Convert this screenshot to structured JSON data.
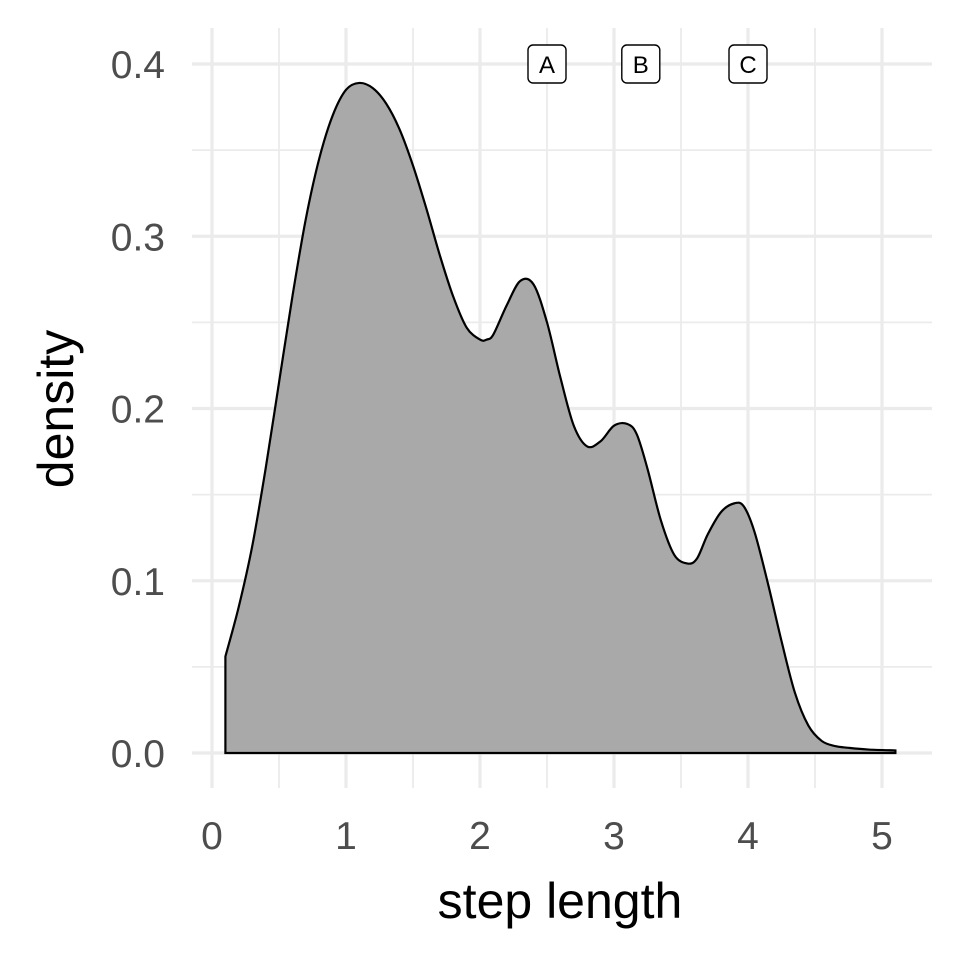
{
  "chart_data": {
    "type": "area",
    "title": "",
    "xlabel": "step length",
    "ylabel": "density",
    "xlim": [
      0,
      5
    ],
    "ylim": [
      0,
      0.4
    ],
    "x_ticks": [
      "0",
      "1",
      "2",
      "3",
      "4",
      "5"
    ],
    "y_ticks": [
      "0.0",
      "0.1",
      "0.2",
      "0.3",
      "0.4"
    ],
    "grid": true,
    "fill_color": "#a9a9a9",
    "line_color": "#000000",
    "series": [
      {
        "x": [
          0.1,
          0.2,
          0.3,
          0.4,
          0.5,
          0.6,
          0.7,
          0.8,
          0.9,
          1.0,
          1.1,
          1.2,
          1.3,
          1.4,
          1.5,
          1.6,
          1.7,
          1.8,
          1.9,
          2.0,
          2.05,
          2.1,
          2.2,
          2.3,
          2.4,
          2.5,
          2.6,
          2.7,
          2.8,
          2.9,
          3.0,
          3.1,
          3.17,
          3.25,
          3.35,
          3.45,
          3.55,
          3.62,
          3.7,
          3.8,
          3.9,
          3.97,
          4.05,
          4.15,
          4.25,
          4.35,
          4.45,
          4.55,
          4.65,
          4.75,
          4.9,
          5.1
        ],
        "y": [
          0.056,
          0.085,
          0.12,
          0.165,
          0.215,
          0.265,
          0.31,
          0.345,
          0.37,
          0.385,
          0.389,
          0.386,
          0.377,
          0.362,
          0.341,
          0.316,
          0.289,
          0.265,
          0.247,
          0.24,
          0.24,
          0.243,
          0.26,
          0.274,
          0.272,
          0.25,
          0.218,
          0.19,
          0.178,
          0.181,
          0.19,
          0.191,
          0.185,
          0.165,
          0.135,
          0.115,
          0.11,
          0.113,
          0.127,
          0.14,
          0.145,
          0.143,
          0.128,
          0.098,
          0.065,
          0.035,
          0.016,
          0.007,
          0.004,
          0.003,
          0.002,
          0.0015
        ]
      }
    ],
    "annotations": [
      {
        "label": "A",
        "x": 2.5,
        "y": 0.4
      },
      {
        "label": "B",
        "x": 3.2,
        "y": 0.4
      },
      {
        "label": "C",
        "x": 4.0,
        "y": 0.4
      }
    ]
  }
}
